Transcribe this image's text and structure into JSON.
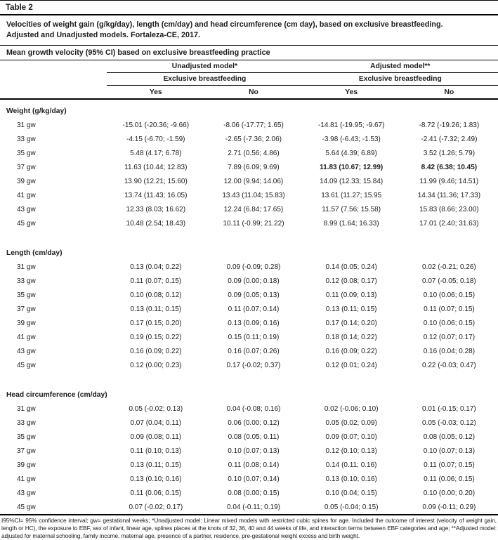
{
  "page": {
    "table_label": "Table 2",
    "caption": "Velocities of weight gain (g/kg/day), length (cm/day) and head circumference (cm day), based on exclusive breastfeeding. Adjusted and Unadjusted models. Fortaleza-CE, 2017.",
    "subtitle": "Mean growth velocity (95% CI) based on exclusive breastfeeding practice"
  },
  "header": {
    "group1": "Unadjusted model*",
    "group2": "Adjusted model**",
    "subgroup1": "Exclusive breastfeeding",
    "subgroup2": "Exclusive breastfeeding",
    "cols": [
      "Yes",
      "No",
      "Yes",
      "No"
    ]
  },
  "sections": [
    {
      "title": "Weight (g/kg/day)",
      "rows": [
        {
          "label": "31 gw",
          "values": [
            "-15.01 (-20.36; -9.66)",
            "-8.06 (-17.77; 1.65)",
            "-14.81 (-19.95; -9.67)",
            "-8.72 (-19.26; 1.83)"
          ]
        },
        {
          "label": "33 gw",
          "values": [
            "-4.15 (-6.70; -1.59)",
            "-2.65 (-7.36; 2.06)",
            "-3.98 (-6.43; -1.53)",
            "-2.41 (-7.32; 2.49)"
          ]
        },
        {
          "label": "35 gw",
          "values": [
            "5.48 (4.17; 6.78)",
            "2.71 (0.56; 4.86)",
            "5.64 (4.39; 6.89)",
            "3.52 (1.26; 5.79)"
          ]
        },
        {
          "label": "37 gw",
          "values": [
            "11.63 (10.44; 12.83)",
            "7.89 (6.09; 9.69)",
            "11.83 (10.67; 12.99)",
            "8.42 (6.38; 10.45)"
          ],
          "bold": [
            2,
            3
          ]
        },
        {
          "label": "39 gw",
          "values": [
            "13.90 (12.21; 15.60)",
            "12.00 (9.94; 14.06)",
            "14.09 (12.33; 15.84)",
            "11.99 (9.46; 14.51)"
          ]
        },
        {
          "label": "41 gw",
          "values": [
            "13.74 (11.43; 16.05)",
            "13.43 (11.04; 15.83)",
            "13.61 (11.27; 15.95",
            "14.34 (11.36; 17.33)"
          ]
        },
        {
          "label": "43 gw",
          "values": [
            "12.33 (8.03; 16.62)",
            "12.24 (6.84; 17.65)",
            "11.57 (7.56; 15.58)",
            "15.83 (8.66; 23.00)"
          ]
        },
        {
          "label": "45 gw",
          "values": [
            "10.48 (2.54; 18.43)",
            "10.11 (-0.99; 21.22)",
            "8.99 (1.64; 16.33)",
            "17.01 (2.40; 31.63)"
          ]
        }
      ]
    },
    {
      "title": "Length (cm/day)",
      "rows": [
        {
          "label": "31 gw",
          "values": [
            "0.13 (0.04; 0.22)",
            "0.09 (-0.09; 0.28)",
            "0.14 (0.05; 0.24)",
            "0.02 (-0.21; 0.26)"
          ]
        },
        {
          "label": "33 gw",
          "values": [
            "0.11 (0.07; 0.15)",
            "0.09 (0.00; 0.18)",
            "0.12 (0.08; 0.17)",
            "0.07 (-0.05; 0.18)"
          ]
        },
        {
          "label": "35 gw",
          "values": [
            "0.10 (0.08; 0.12)",
            "0.09 (0.05; 0.13)",
            "0.11 (0.09; 0.13)",
            "0.10 (0.06; 0.15)"
          ]
        },
        {
          "label": "37 gw",
          "values": [
            "0.13 (0.11; 0.15)",
            "0.11 (0.07; 0.14)",
            "0.13 (0.11; 0.15)",
            "0.11 (0.07; 0.15)"
          ]
        },
        {
          "label": "39 gw",
          "values": [
            "0.17 (0.15; 0.20)",
            "0.13 (0.09; 0.16)",
            "0.17 (0.14; 0.20)",
            "0.10 (0.06; 0.15)"
          ]
        },
        {
          "label": "41 gw",
          "values": [
            "0.19 (0.15; 0.22)",
            "0.15 (0.11; 0.19)",
            "0.18 (0.14; 0.22)",
            "0.12 (0.07; 0.17)"
          ]
        },
        {
          "label": "43 gw",
          "values": [
            "0.16 (0.09; 0.22)",
            "0.16 (0.07; 0.26)",
            "0.16 (0.09; 0.22)",
            "0.16 (0.04; 0.28)"
          ]
        },
        {
          "label": "45 gw",
          "values": [
            "0.12 (0.00; 0.23)",
            "0.17 (-0.02; 0.37)",
            "0.12 (0.01; 0.24)",
            "0.22 (-0.03; 0.47)"
          ]
        }
      ]
    },
    {
      "title": "Head circumference (cm/day)",
      "rows": [
        {
          "label": "31 gw",
          "values": [
            "0.05 (-0.02; 0.13)",
            "0.04 (-0.08; 0.16)",
            "0.02 (-0.06; 0.10)",
            "0.01 (-0.15; 0.17)"
          ]
        },
        {
          "label": "33 gw",
          "values": [
            "0.07 (0.04; 0.11)",
            "0.06 (0.00; 0.12)",
            "0.05 (0.02; 0.09)",
            "0.05 (-0.03; 0.12)"
          ]
        },
        {
          "label": "35 gw",
          "values": [
            "0.09 (0.08; 0.11)",
            "0.08 (0.05; 0.11)",
            "0.09 (0.07; 0.10)",
            "0.08 (0.05; 0.12)"
          ]
        },
        {
          "label": "37 gw",
          "values": [
            "0.11 (0.10; 0.13)",
            "0.10 (0.07; 0.13)",
            "0.12 (0.10; 0.13)",
            "0.10 (0.07; 0.13)"
          ]
        },
        {
          "label": "39 gw",
          "values": [
            "0.13 (0.11; 0.15)",
            "0.11 (0.08; 0.14)",
            "0.14 (0.11; 0.16)",
            "0.11 (0.07; 0.15)"
          ]
        },
        {
          "label": "41 gw",
          "values": [
            "0.13 (0.10; 0.16)",
            "0.10 (0.07; 0.14)",
            "0.13 (0.10; 0.16)",
            "0.11 (0.06; 0.15)"
          ]
        },
        {
          "label": "43 gw",
          "values": [
            "0.11 (0.06; 0.15)",
            "0.08 (0.00; 0.15)",
            "0.10 (0.04; 0.15)",
            "0.10 (0.00; 0.20)"
          ]
        },
        {
          "label": "45 gw",
          "values": [
            "0.07 (-0.02; 0.17)",
            "0.04 (-0.11; 0.19)",
            "0.05 (-0.04; 0.15)",
            "0.09 (-0.11; 0.29)"
          ]
        }
      ]
    }
  ],
  "footnote": "I95%CI= 95% confidence interval; gw= gestational weeks; *Unadjusted model: Linear mixed models with restricted cubic spines for age. Included the outcome of interest (velocity of weight gain, length or HC), the exposure to EBF, sex of infant, linear age, splines places at the knots of 32, 36, 40 and 44 weeks of life, and interaction terms between EBF categories and age; **Adjusted model: adjusted for maternal schooling, family income, maternal age, presence of a partner, residence, pre-gestational weight excess and birth weight."
}
